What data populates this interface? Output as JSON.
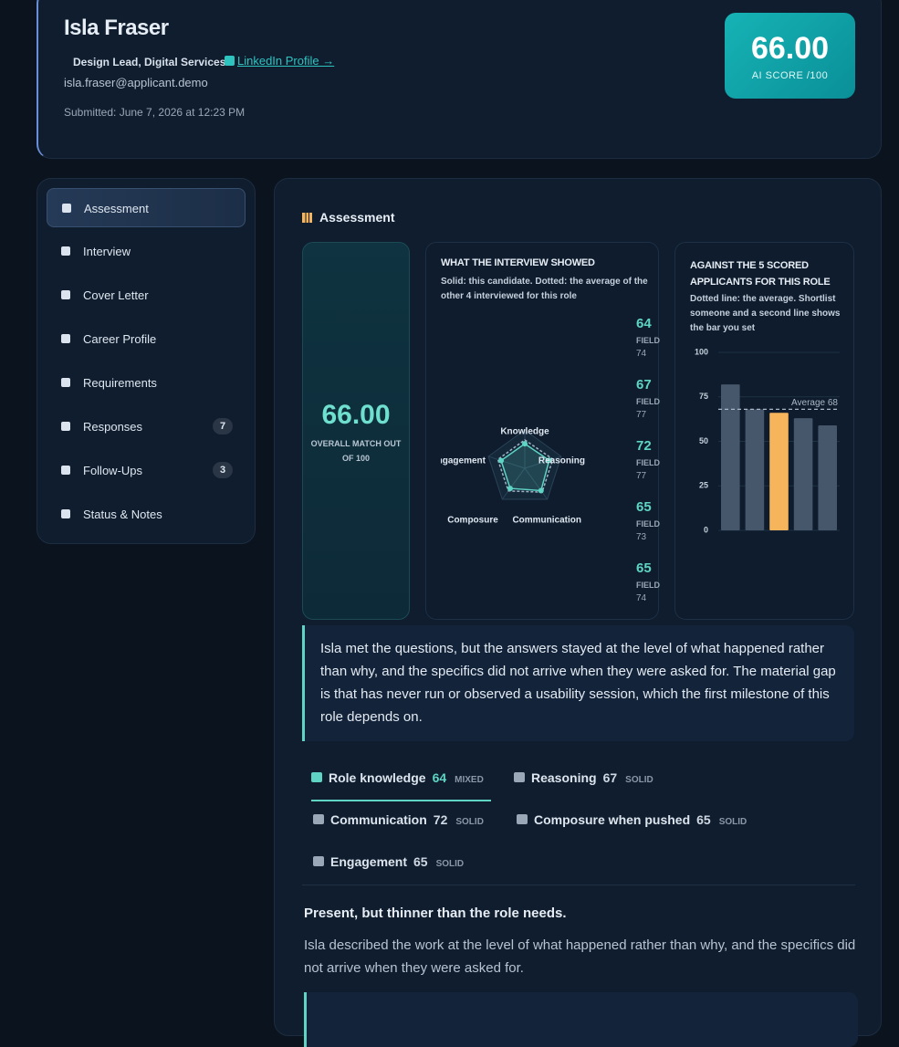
{
  "header": {
    "name": "Isla Fraser",
    "role": "Design Lead, Digital Services",
    "linkedin": "LinkedIn Profile →",
    "email": "isla.fraser@applicant.demo",
    "submitted": "Submitted: June 7, 2026 at 12:23 PM",
    "score": "66.00",
    "score_label": "AI SCORE /100"
  },
  "nav": [
    {
      "label": "Assessment",
      "active": true
    },
    {
      "label": "Interview"
    },
    {
      "label": "Cover Letter"
    },
    {
      "label": "Career Profile"
    },
    {
      "label": "Requirements"
    },
    {
      "label": "Responses",
      "badge": 7
    },
    {
      "label": "Follow-Ups",
      "badge": 3
    },
    {
      "label": "Status & Notes"
    }
  ],
  "assessment": {
    "title": "Assessment",
    "overall": {
      "score": "66.00",
      "label": "OVERALL MATCH OUT OF 100"
    },
    "radar": {
      "type": "radar",
      "title": "WHAT THE INTERVIEW SHOWED",
      "subtitle": "Solid: this candidate. Dotted: the average of the other 4 interviewed for this role",
      "categories": [
        "Knowledge",
        "Reasoning",
        "Communication",
        "Composure",
        "Engagement"
      ],
      "rlim": [
        0,
        100
      ],
      "field_label": "FIELD",
      "candidate": {
        "color": "#5fd4c4",
        "values": [
          64,
          67,
          72,
          65,
          65
        ]
      },
      "field": {
        "color": "#9fb3c8",
        "values": [
          74,
          77,
          77,
          73,
          74
        ]
      }
    },
    "bars": {
      "type": "bar",
      "title": "AGAINST THE 5 SCORED APPLICANTS FOR THIS ROLE",
      "subtitle": "Dotted line: the average. Shortlist someone and a second line shows the bar you set",
      "values": [
        82,
        68,
        66,
        63,
        59
      ],
      "color": "#46566b",
      "highlight_index": 2,
      "highlight_color": "#f6b55a",
      "ylim": [
        0,
        100
      ],
      "yticks": [
        0,
        25,
        50,
        75,
        100
      ],
      "grid": true,
      "average": 68,
      "average_label": "Average 68"
    },
    "summary": "Isla met the questions, but the answers stayed at the level of what happened rather than why, and the specifics did not arrive when they were asked for. The material gap is that has never run or observed a usability session, which the first milestone of this role depends on.",
    "dimensions": [
      {
        "name": "Role knowledge",
        "score": 64,
        "verdict": "MIXED",
        "active": true
      },
      {
        "name": "Reasoning",
        "score": 67,
        "verdict": "SOLID"
      },
      {
        "name": "Communication",
        "score": 72,
        "verdict": "SOLID"
      },
      {
        "name": "Composure when pushed",
        "score": 65,
        "verdict": "SOLID"
      },
      {
        "name": "Engagement",
        "score": 65,
        "verdict": "SOLID"
      }
    ],
    "finding": {
      "heading": "Present, but thinner than the role needs.",
      "body": "Isla described the work at the level of what happened rather than why, and the specifics did not arrive when they were asked for."
    }
  }
}
